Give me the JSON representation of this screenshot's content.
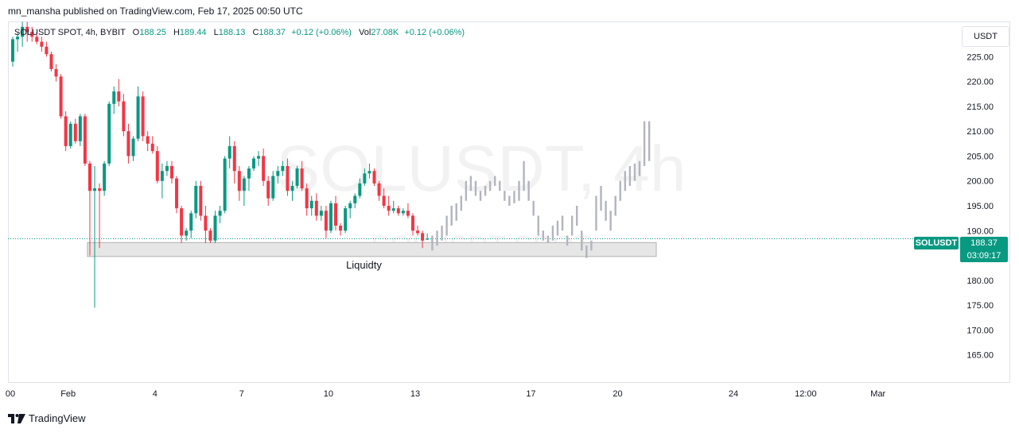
{
  "publisher_line": "mn_mansha published on TradingView.com, Feb 17, 2025 00:50 UTC",
  "legend": {
    "symbol": "SOLUSDT SPOT, 4h, BYBIT",
    "o_label": "O",
    "o_value": "188.25",
    "h_label": "H",
    "h_value": "189.44",
    "l_label": "L",
    "l_value": "188.13",
    "c_label": "C",
    "c_value": "188.37",
    "change": "+0.12 (+0.06%)",
    "vol_label": "Vol",
    "vol_value": "27.08K",
    "vol_change": "+0.12 (+0.06%)"
  },
  "unit_button": "USDT",
  "watermark": {
    "main": "SOLUSDT, 4h",
    "sub": "SOLUSDT SPOT"
  },
  "price_badge": {
    "symbol": "SOLUSDT",
    "price": "188.37",
    "countdown": "03:09:17"
  },
  "brand": "TradingView",
  "colors": {
    "up": "#089981",
    "down": "#f23645",
    "projection": "#b2b5be",
    "zone_fill": "#e6e6e6",
    "zone_border": "#b0b0b0"
  },
  "chart_data": {
    "type": "candlestick",
    "y_ticks": [
      "225.00",
      "220.00",
      "215.00",
      "210.00",
      "205.00",
      "200.00",
      "195.00",
      "190.00",
      "185.00",
      "180.00",
      "175.00",
      "170.00",
      "165.00"
    ],
    "y_range": [
      161.6,
      231.6
    ],
    "x_ticks": [
      {
        "label": "00",
        "idx": -0.5
      },
      {
        "label": "Feb",
        "idx": 11.5
      },
      {
        "label": "4",
        "idx": 29.5
      },
      {
        "label": "7",
        "idx": 47.5
      },
      {
        "label": "10",
        "idx": 65.5
      },
      {
        "label": "13",
        "idx": 83.5
      },
      {
        "label": "17",
        "idx": 107.5
      },
      {
        "label": "20",
        "idx": 125.5
      },
      {
        "label": "24",
        "idx": 149.5
      },
      {
        "label": "12:00",
        "idx": 164.5
      },
      {
        "label": "Mar",
        "idx": 179.5
      }
    ],
    "candles": [
      [
        224,
        229,
        223,
        228.5
      ],
      [
        228.5,
        230,
        226,
        229
      ],
      [
        229,
        232,
        227,
        231
      ],
      [
        231,
        232,
        228,
        230
      ],
      [
        230,
        231,
        228,
        229
      ],
      [
        229,
        230,
        227.5,
        228
      ],
      [
        228,
        229,
        226,
        227
      ],
      [
        227,
        228,
        225,
        225.5
      ],
      [
        225.5,
        226,
        222,
        222.5
      ],
      [
        222.5,
        223.5,
        220,
        221
      ],
      [
        221,
        221.5,
        212.5,
        213
      ],
      [
        213,
        214,
        206,
        207
      ],
      [
        207,
        212,
        206.5,
        211.5
      ],
      [
        211.5,
        212.5,
        207.5,
        208
      ],
      [
        208,
        213.5,
        207,
        213
      ],
      [
        213,
        213.5,
        203,
        203.5
      ],
      [
        203.5,
        204,
        185,
        198
      ],
      [
        198,
        203,
        174.5,
        198.5
      ],
      [
        198.5,
        199.5,
        186.5,
        198
      ],
      [
        198,
        204,
        197,
        203.5
      ],
      [
        203.5,
        216,
        203,
        215.5
      ],
      [
        215.5,
        219,
        213.5,
        218
      ],
      [
        218,
        220.5,
        215,
        216
      ],
      [
        216,
        217.5,
        209,
        210
      ],
      [
        210,
        211.5,
        203.5,
        205
      ],
      [
        205,
        209,
        204,
        208.5
      ],
      [
        208.5,
        219,
        208,
        217
      ],
      [
        217,
        218,
        208,
        209
      ],
      [
        209,
        210,
        206,
        207.5
      ],
      [
        207.5,
        209,
        205.5,
        206
      ],
      [
        206,
        207,
        199.5,
        200
      ],
      [
        200,
        203.5,
        196.5,
        202
      ],
      [
        202,
        204,
        201,
        203
      ],
      [
        203,
        204,
        199.5,
        200.5
      ],
      [
        200.5,
        201,
        193.5,
        194.5
      ],
      [
        194.5,
        195,
        187.5,
        189
      ],
      [
        189,
        190.5,
        188,
        190
      ],
      [
        190,
        194,
        188.5,
        193.5
      ],
      [
        193.5,
        200,
        192.5,
        199
      ],
      [
        199,
        200,
        192,
        193
      ],
      [
        193,
        195,
        187.5,
        190
      ],
      [
        190,
        190.5,
        187.5,
        188
      ],
      [
        188,
        194,
        187.5,
        193
      ],
      [
        193,
        195,
        191.5,
        194
      ],
      [
        194,
        205,
        193.5,
        204.5
      ],
      [
        204.5,
        209,
        202.5,
        207
      ],
      [
        207,
        208,
        199.5,
        202
      ],
      [
        202,
        203,
        196,
        198
      ],
      [
        198,
        201,
        195,
        200.5
      ],
      [
        200.5,
        203,
        198,
        202.5
      ],
      [
        202.5,
        205,
        202,
        204.5
      ],
      [
        204.5,
        206,
        203,
        205
      ],
      [
        205,
        206.5,
        199,
        200
      ],
      [
        200,
        201,
        195,
        196.5
      ],
      [
        196.5,
        202,
        196,
        201
      ],
      [
        201,
        203,
        199.5,
        202
      ],
      [
        202,
        204,
        201,
        203
      ],
      [
        203,
        204.5,
        197,
        198
      ],
      [
        198,
        200,
        196,
        199
      ],
      [
        199,
        203,
        198.5,
        202.5
      ],
      [
        202.5,
        204,
        198,
        198.5
      ],
      [
        198.5,
        199.5,
        193,
        194.5
      ],
      [
        194.5,
        197,
        193,
        196
      ],
      [
        196,
        197.5,
        192,
        193
      ],
      [
        193,
        195,
        192,
        194
      ],
      [
        194,
        195,
        188.5,
        190
      ],
      [
        190,
        196,
        189.5,
        195.5
      ],
      [
        195.5,
        197,
        190,
        191
      ],
      [
        191,
        191.5,
        189,
        190
      ],
      [
        190,
        195,
        189.5,
        194.5
      ],
      [
        194.5,
        196,
        192.5,
        195.5
      ],
      [
        195.5,
        197.5,
        194.5,
        197
      ],
      [
        197,
        200.5,
        196.5,
        199.5
      ],
      [
        199.5,
        202.5,
        199,
        201.5
      ],
      [
        201.5,
        203.5,
        200.5,
        202
      ],
      [
        202,
        202.5,
        199,
        199.5
      ],
      [
        199.5,
        200,
        196,
        197
      ],
      [
        197,
        198.5,
        194.5,
        195
      ],
      [
        195,
        197,
        193,
        194
      ],
      [
        194,
        196,
        193.5,
        194.5
      ],
      [
        194.5,
        195,
        193,
        193.5
      ],
      [
        193.5,
        194.5,
        193,
        194
      ],
      [
        194,
        195.5,
        192.5,
        193
      ],
      [
        193,
        193.5,
        189,
        190
      ],
      [
        190,
        191,
        189,
        189.5
      ],
      [
        189.5,
        190,
        186.5,
        188
      ],
      [
        188.25,
        189.44,
        188.13,
        188.37
      ]
    ],
    "projection": [
      [
        186,
        189
      ],
      [
        187,
        190
      ],
      [
        188,
        191
      ],
      [
        189,
        193
      ],
      [
        191,
        195
      ],
      [
        192,
        195.5
      ],
      [
        194,
        197
      ],
      [
        196,
        200
      ],
      [
        198,
        201
      ],
      [
        197,
        200
      ],
      [
        196,
        198
      ],
      [
        197,
        199
      ],
      [
        198,
        200
      ],
      [
        199,
        201
      ],
      [
        198,
        200
      ],
      [
        196,
        198
      ],
      [
        195,
        197
      ],
      [
        195.5,
        198
      ],
      [
        196,
        200
      ],
      [
        198,
        204
      ],
      [
        196,
        200
      ],
      [
        193,
        196
      ],
      [
        189,
        193
      ],
      [
        188,
        190
      ],
      [
        187.5,
        189
      ],
      [
        188,
        191
      ],
      [
        189,
        192
      ],
      [
        190,
        193
      ],
      [
        187,
        189
      ],
      [
        189,
        193
      ],
      [
        191,
        195
      ],
      [
        186,
        190
      ],
      [
        184.5,
        187
      ],
      [
        186,
        188
      ],
      [
        190,
        197
      ],
      [
        194,
        199
      ],
      [
        192,
        196
      ],
      [
        190,
        194
      ],
      [
        193,
        197
      ],
      [
        196,
        200
      ],
      [
        198,
        202
      ],
      [
        199,
        203
      ],
      [
        200,
        203.5
      ],
      [
        201,
        204
      ],
      [
        203,
        212
      ],
      [
        204,
        212
      ]
    ],
    "zone": {
      "label": "Liquidty",
      "top": 187.6,
      "bottom": 184.8,
      "idx_start": 15.5,
      "idx_end": 133.5
    },
    "current_price": 188.37
  }
}
